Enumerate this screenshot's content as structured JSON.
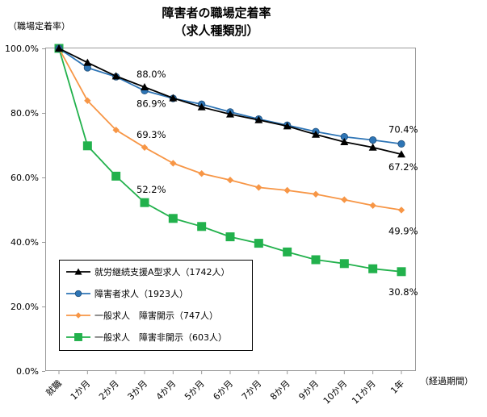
{
  "chart_data": {
    "type": "line",
    "title": "障害者の職場定着率",
    "subtitle": "（求人種類別）",
    "ylabel": "（職場定着率）",
    "xlabel": "（経過期間）",
    "categories": [
      "就職",
      "1か月",
      "2か月",
      "3か月",
      "4か月",
      "5か月",
      "6か月",
      "7か月",
      "8か月",
      "9か月",
      "10か月",
      "11か月",
      "1年"
    ],
    "ylim": [
      0,
      100
    ],
    "yticks": [
      "0.0%",
      "20.0%",
      "40.0%",
      "60.0%",
      "80.0%",
      "100.0%"
    ],
    "grid": false,
    "legend_position": "bottom-left",
    "series": [
      {
        "name": "就労継続支援A型求人（1742人）",
        "color": "#000000",
        "marker": "triangle",
        "values": [
          100.0,
          95.6,
          91.4,
          88.0,
          84.6,
          81.8,
          79.6,
          77.8,
          75.9,
          73.3,
          71.0,
          69.3,
          67.2
        ]
      },
      {
        "name": "障害者求人（1923人）",
        "color": "#2e75b6",
        "marker": "circle",
        "values": [
          100.0,
          94.0,
          91.2,
          86.9,
          84.5,
          82.7,
          80.3,
          78.1,
          76.2,
          74.2,
          72.6,
          71.6,
          70.4
        ]
      },
      {
        "name": "一般求人　障害開示（747人）",
        "color": "#f79646",
        "marker": "diamond",
        "values": [
          100.0,
          83.8,
          74.7,
          69.3,
          64.4,
          61.2,
          59.2,
          56.9,
          56.0,
          54.8,
          53.1,
          51.3,
          49.9
        ]
      },
      {
        "name": "一般求人　障害非開示（603人）",
        "color": "#22b14c",
        "marker": "square",
        "values": [
          100.0,
          69.8,
          60.4,
          52.2,
          47.3,
          44.8,
          41.6,
          39.6,
          36.9,
          34.5,
          33.3,
          31.7,
          30.8
        ]
      }
    ],
    "annotations": [
      {
        "text": "88.0%",
        "series": 0,
        "index": 3
      },
      {
        "text": "86.9%",
        "series": 1,
        "index": 3
      },
      {
        "text": "69.3%",
        "series": 2,
        "index": 3
      },
      {
        "text": "52.2%",
        "series": 3,
        "index": 3
      },
      {
        "text": "70.4%",
        "series": 1,
        "index": 12
      },
      {
        "text": "67.2%",
        "series": 0,
        "index": 12
      },
      {
        "text": "49.9%",
        "series": 2,
        "index": 12
      },
      {
        "text": "30.8%",
        "series": 3,
        "index": 12
      }
    ]
  }
}
